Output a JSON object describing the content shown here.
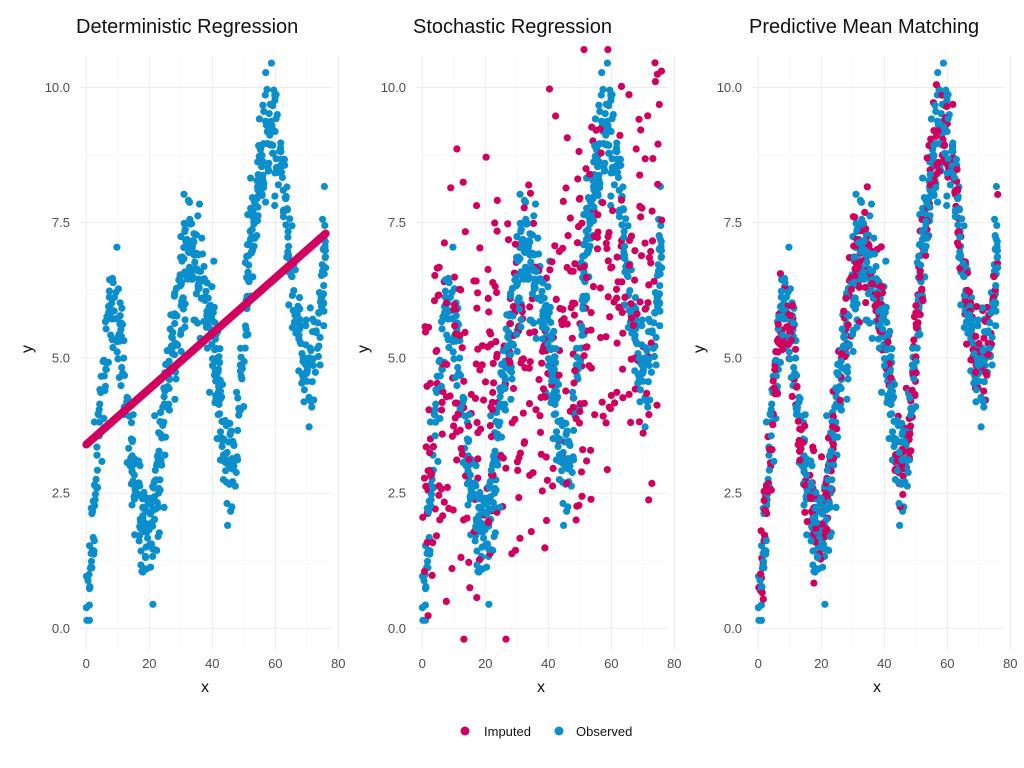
{
  "colors": {
    "imputed": "#D1005F",
    "observed": "#0B8FCC"
  },
  "legend": {
    "placement": "bottom",
    "items": [
      {
        "label": "Imputed",
        "color": "#D1005F"
      },
      {
        "label": "Observed",
        "color": "#0B8FCC"
      }
    ]
  },
  "chart_data": [
    {
      "type": "scatter",
      "title": "Deterministic Regression",
      "xlabel": "x",
      "ylabel": "y",
      "xlim": [
        -2,
        78
      ],
      "ylim": [
        -0.4,
        10.6
      ],
      "xticks": [
        0,
        20,
        40,
        60,
        80
      ],
      "yticks": [
        0.0,
        2.5,
        5.0,
        7.5,
        10.0
      ],
      "ytick_labels": [
        "0.0",
        "2.5",
        "5.0",
        "7.5",
        "10.0"
      ],
      "grid": true,
      "imputed_pattern": "line",
      "imputed_line": {
        "x": [
          0,
          76
        ],
        "y": [
          3.4,
          7.3
        ]
      }
    },
    {
      "type": "scatter",
      "title": "Stochastic Regression",
      "xlabel": "x",
      "ylabel": "y",
      "xlim": [
        -2,
        78
      ],
      "ylim": [
        -0.4,
        10.6
      ],
      "xticks": [
        0,
        20,
        40,
        60,
        80
      ],
      "yticks": [
        0.0,
        2.5,
        5.0,
        7.5,
        10.0
      ],
      "ytick_labels": [
        "0.0",
        "2.5",
        "5.0",
        "7.5",
        "10.0"
      ],
      "grid": true,
      "imputed_pattern": "noise",
      "imputed_line": {
        "x": [
          0,
          76
        ],
        "y": [
          3.4,
          7.3
        ]
      },
      "imputed_noise_sd": 1.9
    },
    {
      "type": "scatter",
      "title": "Predictive Mean Matching",
      "xlabel": "x",
      "ylabel": "y",
      "xlim": [
        -2,
        78
      ],
      "ylim": [
        -0.4,
        10.6
      ],
      "xticks": [
        0,
        20,
        40,
        60,
        80
      ],
      "yticks": [
        0.0,
        2.5,
        5.0,
        7.5,
        10.0
      ],
      "ytick_labels": [
        "0.0",
        "2.5",
        "5.0",
        "7.5",
        "10.0"
      ],
      "grid": true,
      "imputed_pattern": "matched"
    }
  ],
  "observed_curve": {
    "x": [
      0,
      1,
      3,
      5,
      7,
      9,
      11,
      13,
      15,
      17,
      19,
      21,
      23,
      25,
      27,
      29,
      31,
      33,
      35,
      37,
      39,
      41,
      43,
      45,
      47,
      49,
      51,
      53,
      55,
      57,
      59,
      61,
      63,
      65,
      67,
      69,
      71,
      73,
      75,
      76
    ],
    "y": [
      0.4,
      1.0,
      2.8,
      4.3,
      5.6,
      5.9,
      5.2,
      3.6,
      2.9,
      2.3,
      1.6,
      2.2,
      2.9,
      4.2,
      5.2,
      6.0,
      6.6,
      7.0,
      6.8,
      6.3,
      5.8,
      5.1,
      3.8,
      2.8,
      3.2,
      4.4,
      6.0,
      7.6,
      8.4,
      8.9,
      9.4,
      8.8,
      7.8,
      6.7,
      5.6,
      5.1,
      4.8,
      5.2,
      6.6,
      7.2
    ]
  },
  "observed_spread": 0.55
}
